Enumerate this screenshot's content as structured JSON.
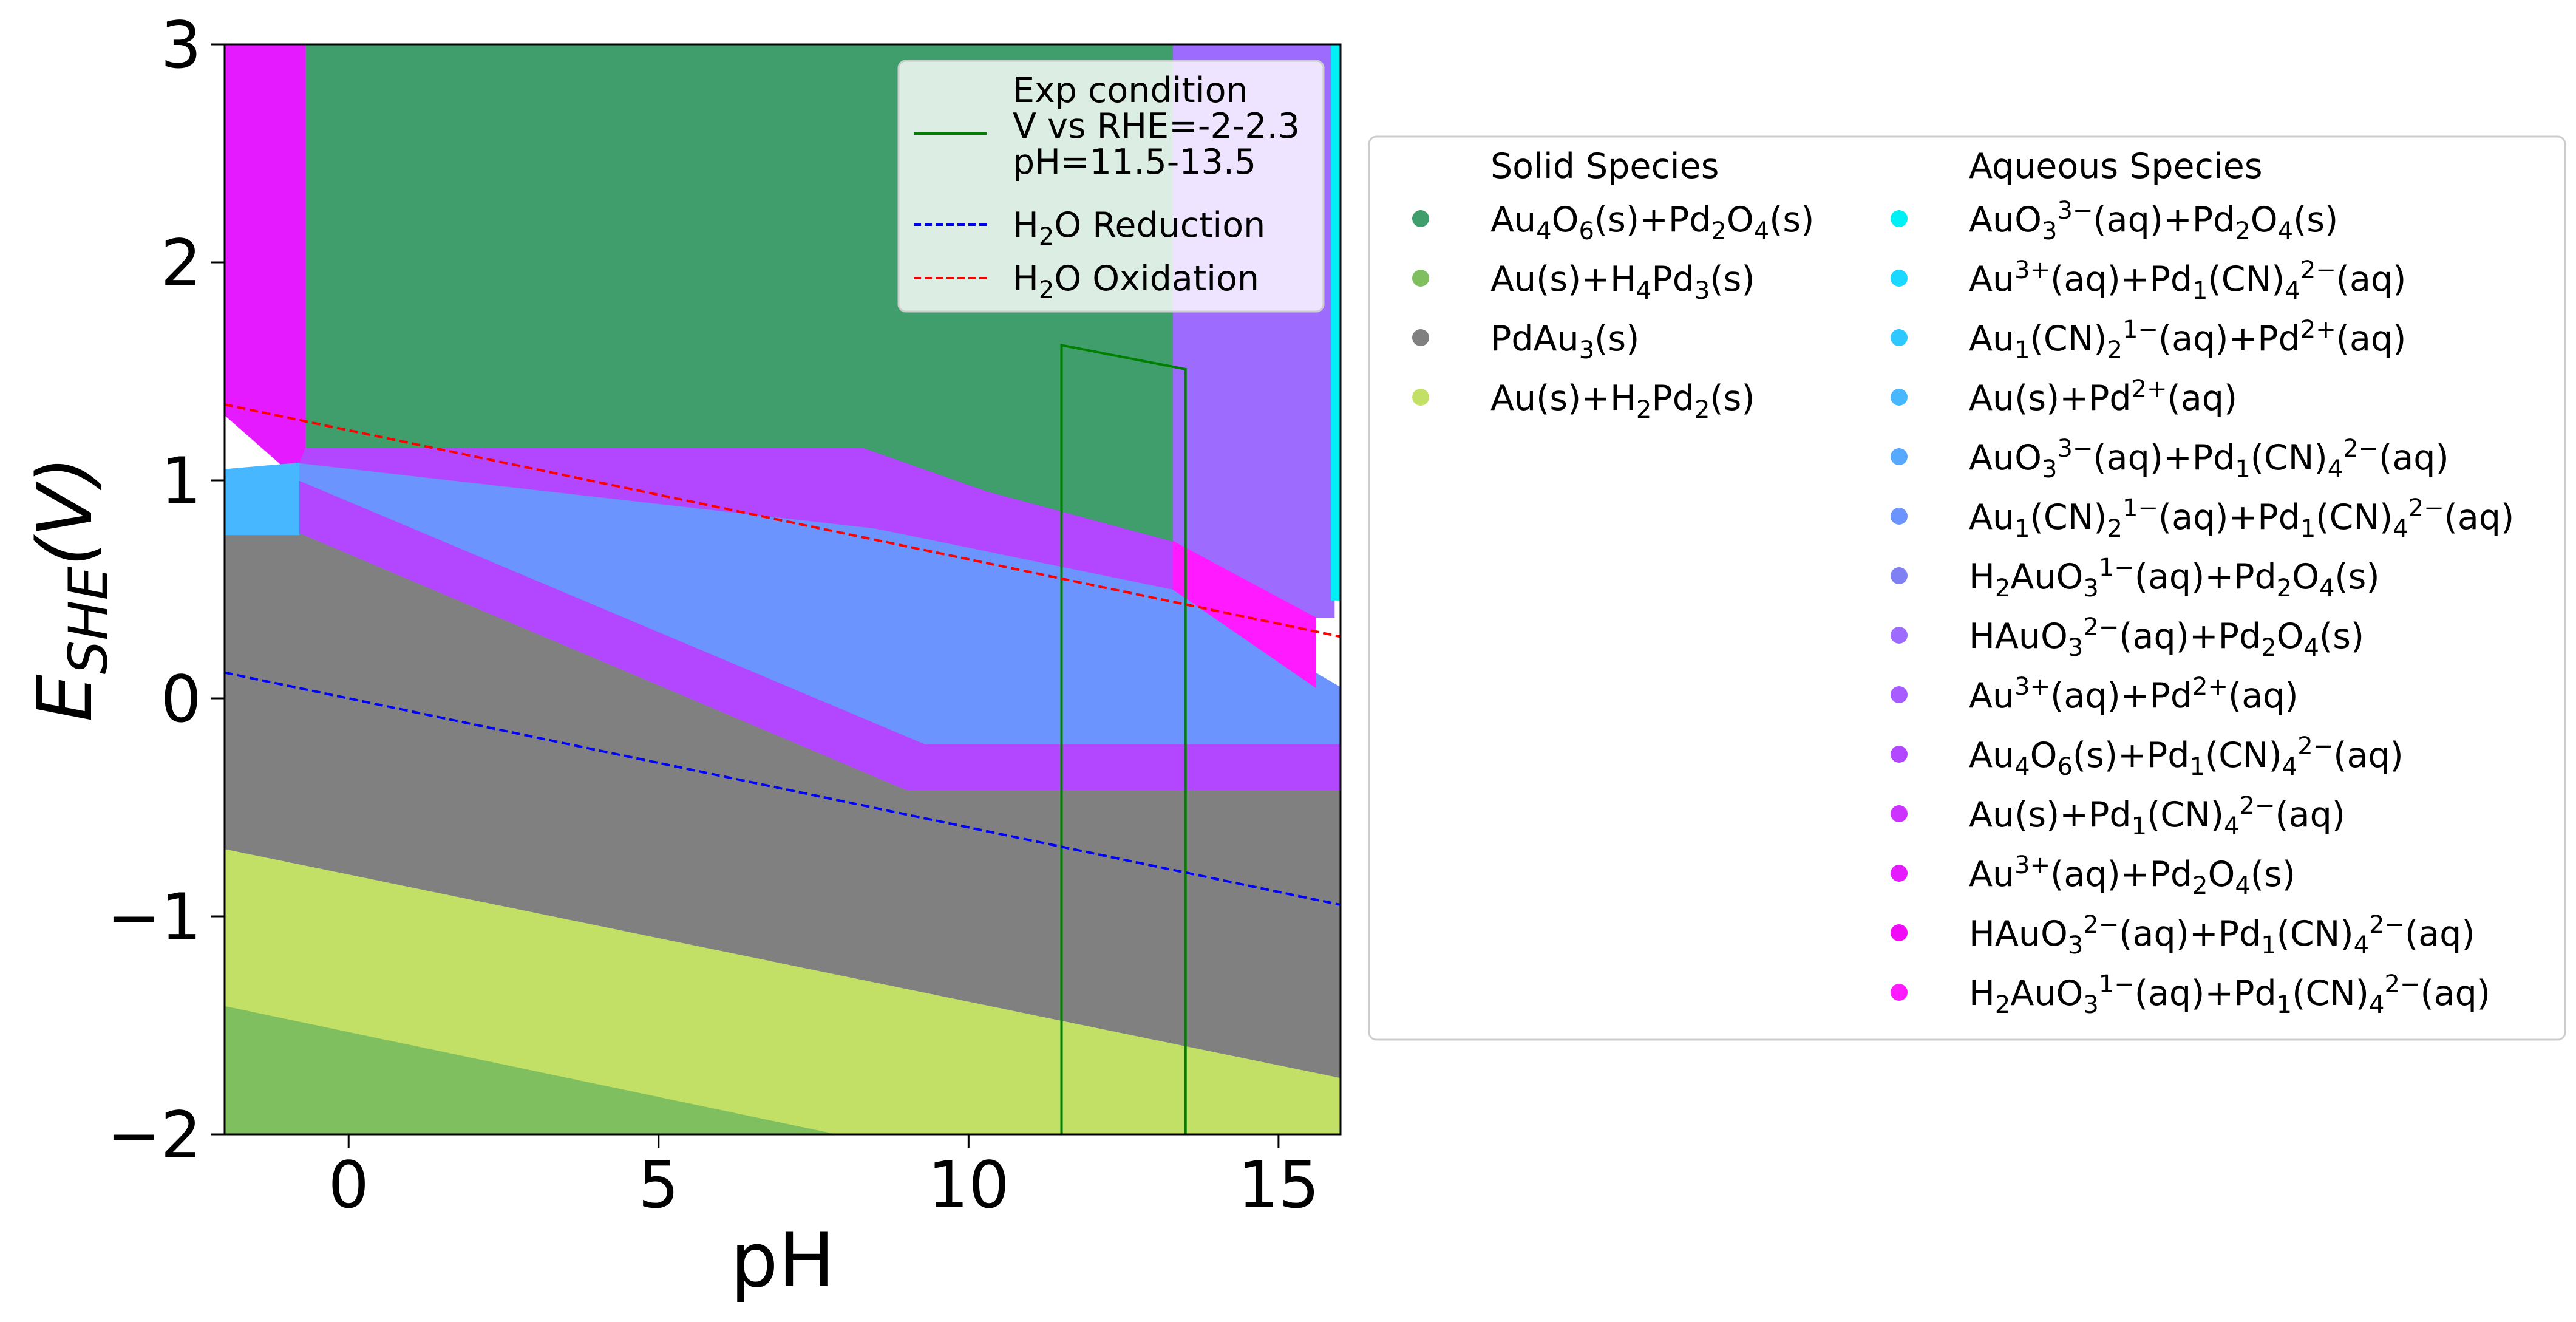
{
  "chart_data": {
    "type": "area",
    "title": "",
    "xlabel": "pH",
    "ylabel": {
      "base": "E",
      "sub": "SHE",
      "suffix": "(V)"
    },
    "xlim": [
      -2,
      16
    ],
    "ylim": [
      -2,
      3
    ],
    "xticks": [
      {
        "value": 0,
        "label": "0"
      },
      {
        "value": 5,
        "label": "5"
      },
      {
        "value": 10,
        "label": "10"
      },
      {
        "value": 15,
        "label": "15"
      }
    ],
    "yticks": [
      {
        "value": -2,
        "label": "−2"
      },
      {
        "value": -1,
        "label": "−1"
      },
      {
        "value": 0,
        "label": "0"
      },
      {
        "value": 1,
        "label": "1"
      },
      {
        "value": 2,
        "label": "2"
      },
      {
        "value": 3,
        "label": "3"
      }
    ],
    "grid": false,
    "regions": [
      {
        "name": "Au(s)+H4Pd3(s)",
        "color": "#7fbf5f",
        "points": [
          [
            -2,
            -2
          ],
          [
            7.9,
            -2
          ],
          [
            -2,
            -1.41
          ]
        ]
      },
      {
        "name": "Au(s)+H2Pd2(s)",
        "color": "#c3e066",
        "points": [
          [
            -2,
            -0.69
          ],
          [
            16,
            -1.74
          ],
          [
            16,
            -2
          ],
          [
            7.9,
            -2
          ],
          [
            -2,
            -1.41
          ]
        ]
      },
      {
        "name": "PdAu3(s)",
        "color": "#808080",
        "points": [
          [
            -2,
            0.75
          ],
          [
            -0.8,
            0.75
          ],
          [
            -0.8,
            0.76
          ],
          [
            9.0,
            -0.42
          ],
          [
            16,
            -0.42
          ],
          [
            16,
            -1.74
          ],
          [
            -2,
            -0.69
          ]
        ]
      },
      {
        "name": "Au(s)+Pd1(CN)4 2-(aq)",
        "color": "#b347ff",
        "points": [
          [
            -0.8,
            1.0
          ],
          [
            -0.8,
            0.76
          ],
          [
            9.0,
            -0.42
          ],
          [
            16,
            -0.42
          ],
          [
            16,
            -0.21
          ],
          [
            9.3,
            -0.21
          ]
        ]
      },
      {
        "name": "Au1(CN)2 1-(aq)+Pd1(CN)4 2-(aq)",
        "color": "#6b94ff",
        "points": [
          [
            -0.8,
            1.08
          ],
          [
            8.5,
            0.78
          ],
          [
            13.3,
            0.5
          ],
          [
            16,
            0.05
          ],
          [
            16,
            -0.21
          ],
          [
            9.3,
            -0.21
          ],
          [
            -0.8,
            1.0
          ]
        ]
      },
      {
        "name": "Au4O6(s)+Pd1(CN)4 2-(aq)",
        "color": "#b347ff",
        "points": [
          [
            -0.7,
            1.15
          ],
          [
            8.3,
            1.15
          ],
          [
            10.3,
            0.95
          ],
          [
            13.3,
            0.72
          ],
          [
            15.6,
            0.37
          ],
          [
            15.6,
            0.05
          ],
          [
            13.3,
            0.5
          ],
          [
            8.5,
            0.78
          ],
          [
            -0.8,
            1.08
          ]
        ]
      },
      {
        "name": "Au4O6(s)+Pd2O4(s)",
        "color": "#3f9e6b",
        "points": [
          [
            -0.7,
            3
          ],
          [
            13.3,
            3
          ],
          [
            13.3,
            0.72
          ],
          [
            10.3,
            0.95
          ],
          [
            8.3,
            1.15
          ],
          [
            -0.7,
            1.15
          ]
        ]
      },
      {
        "name": "HAuO3 2-(aq)+Pd2O4(s)",
        "color": "#9e6bff",
        "points": [
          [
            13.3,
            3
          ],
          [
            15.9,
            3
          ],
          [
            15.9,
            0.37
          ],
          [
            15.6,
            0.37
          ],
          [
            13.3,
            0.72
          ]
        ]
      },
      {
        "name": "H2AuO3 1-(aq)+Pd1(CN)4 2-(aq)",
        "color": "#ff1aff",
        "points": [
          [
            13.3,
            0.72
          ],
          [
            15.6,
            0.37
          ],
          [
            15.6,
            0.05
          ],
          [
            13.3,
            0.5
          ]
        ]
      },
      {
        "name": "Au3+(aq)+Pd2O4(s)",
        "color": "#e61aff",
        "points": [
          [
            -2,
            3
          ],
          [
            -0.7,
            3
          ],
          [
            -0.7,
            1.15
          ],
          [
            -0.8,
            1.08
          ],
          [
            -0.8,
            1.0
          ],
          [
            -2,
            1.3
          ]
        ]
      },
      {
        "name": "Au(s)+Pd2+(aq)",
        "color": "#47b8ff",
        "points": [
          [
            -2,
            0.75
          ],
          [
            -0.8,
            0.75
          ],
          [
            -0.8,
            1.08
          ],
          [
            -2,
            1.05
          ]
        ]
      },
      {
        "name": "AuO3 3-(aq)+Pd2O4(s)",
        "color": "#00f0f5",
        "points": [
          [
            15.85,
            3
          ],
          [
            16,
            3
          ],
          [
            16,
            0.45
          ],
          [
            15.85,
            0.45
          ]
        ]
      }
    ],
    "series": [
      {
        "name": "Exp condition\nV vs RHE=-2-2.3\npH=11.5-13.5",
        "color": "#007f00",
        "style": "solid",
        "points": [
          [
            11.5,
            -2
          ],
          [
            11.5,
            1.62
          ],
          [
            13.5,
            1.51
          ],
          [
            13.5,
            -2
          ]
        ]
      },
      {
        "name": "H2O Reduction",
        "color": "#0000ff",
        "style": "dashed",
        "points": [
          [
            -2,
            0.118
          ],
          [
            16,
            -0.947
          ]
        ]
      },
      {
        "name": "H2O Oxidation",
        "color": "#ff0000",
        "style": "dashed",
        "points": [
          [
            -2,
            1.348
          ],
          [
            16,
            0.283
          ]
        ]
      }
    ],
    "inset_legend": {
      "placement": "top-right",
      "entries": [
        {
          "lines": [
            "Exp condition",
            "V vs RHE=-2-2.3",
            "pH=11.5-13.5"
          ],
          "color": "#007f00",
          "style": "solid"
        },
        {
          "parts": [
            {
              "t": "H"
            },
            {
              "t": "2",
              "sub": true
            },
            {
              "t": "O Reduction"
            }
          ],
          "color": "#0000ff",
          "style": "dashed"
        },
        {
          "parts": [
            {
              "t": "H"
            },
            {
              "t": "2",
              "sub": true
            },
            {
              "t": "O Oxidation"
            }
          ],
          "color": "#ff0000",
          "style": "dashed"
        }
      ]
    },
    "side_legend": {
      "placement": "right",
      "solid_header": "Solid Species",
      "aqueous_header": "Aqueous Species",
      "solid": [
        {
          "color": "#3f9e6b",
          "parts": [
            {
              "t": "Au"
            },
            {
              "t": "4",
              "sub": true
            },
            {
              "t": "O"
            },
            {
              "t": "6",
              "sub": true
            },
            {
              "t": "(s)+Pd"
            },
            {
              "t": "2",
              "sub": true
            },
            {
              "t": "O"
            },
            {
              "t": "4",
              "sub": true
            },
            {
              "t": "(s)"
            }
          ]
        },
        {
          "color": "#7fbf5f",
          "parts": [
            {
              "t": "Au(s)+H"
            },
            {
              "t": "4",
              "sub": true
            },
            {
              "t": "Pd"
            },
            {
              "t": "3",
              "sub": true
            },
            {
              "t": "(s)"
            }
          ]
        },
        {
          "color": "#808080",
          "parts": [
            {
              "t": "PdAu"
            },
            {
              "t": "3",
              "sub": true
            },
            {
              "t": "(s)"
            }
          ]
        },
        {
          "color": "#c3e066",
          "parts": [
            {
              "t": "Au(s)+H"
            },
            {
              "t": "2",
              "sub": true
            },
            {
              "t": "Pd"
            },
            {
              "t": "2",
              "sub": true
            },
            {
              "t": "(s)"
            }
          ]
        }
      ],
      "aqueous": [
        {
          "color": "#00f0f5",
          "parts": [
            {
              "t": "AuO"
            },
            {
              "t": "3",
              "sub": true
            },
            {
              "t": "3−",
              "sup": true
            },
            {
              "t": "(aq)+Pd"
            },
            {
              "t": "2",
              "sub": true
            },
            {
              "t": "O"
            },
            {
              "t": "4",
              "sub": true
            },
            {
              "t": "(s)"
            }
          ]
        },
        {
          "color": "#1ad8ff",
          "parts": [
            {
              "t": "Au"
            },
            {
              "t": "3+",
              "sup": true
            },
            {
              "t": "(aq)+Pd"
            },
            {
              "t": "1",
              "sub": true
            },
            {
              "t": "(CN)"
            },
            {
              "t": "4",
              "sub": true
            },
            {
              "t": "2−",
              "sup": true
            },
            {
              "t": "(aq)"
            }
          ]
        },
        {
          "color": "#2ec8ff",
          "parts": [
            {
              "t": "Au"
            },
            {
              "t": "1",
              "sub": true
            },
            {
              "t": "(CN)"
            },
            {
              "t": "2",
              "sub": true
            },
            {
              "t": "1−",
              "sup": true
            },
            {
              "t": "(aq)+Pd"
            },
            {
              "t": "2+",
              "sup": true
            },
            {
              "t": "(aq)"
            }
          ]
        },
        {
          "color": "#47b8ff",
          "parts": [
            {
              "t": "Au(s)+Pd"
            },
            {
              "t": "2+",
              "sup": true
            },
            {
              "t": "(aq)"
            }
          ]
        },
        {
          "color": "#57a8ff",
          "parts": [
            {
              "t": "AuO"
            },
            {
              "t": "3",
              "sub": true
            },
            {
              "t": "3−",
              "sup": true
            },
            {
              "t": "(aq)+Pd"
            },
            {
              "t": "1",
              "sub": true
            },
            {
              "t": "(CN)"
            },
            {
              "t": "4",
              "sub": true
            },
            {
              "t": "2−",
              "sup": true
            },
            {
              "t": "(aq)"
            }
          ]
        },
        {
          "color": "#6b94ff",
          "parts": [
            {
              "t": "Au"
            },
            {
              "t": "1",
              "sub": true
            },
            {
              "t": "(CN)"
            },
            {
              "t": "2",
              "sub": true
            },
            {
              "t": "1−",
              "sup": true
            },
            {
              "t": "(aq)+Pd"
            },
            {
              "t": "1",
              "sub": true
            },
            {
              "t": "(CN)"
            },
            {
              "t": "4",
              "sub": true
            },
            {
              "t": "2−",
              "sup": true
            },
            {
              "t": "(aq)"
            }
          ]
        },
        {
          "color": "#8080f5",
          "parts": [
            {
              "t": "H"
            },
            {
              "t": "2",
              "sub": true
            },
            {
              "t": "AuO"
            },
            {
              "t": "3",
              "sub": true
            },
            {
              "t": "1−",
              "sup": true
            },
            {
              "t": "(aq)+Pd"
            },
            {
              "t": "2",
              "sub": true
            },
            {
              "t": "O"
            },
            {
              "t": "4",
              "sub": true
            },
            {
              "t": "(s)"
            }
          ]
        },
        {
          "color": "#9e6bff",
          "parts": [
            {
              "t": "HAuO"
            },
            {
              "t": "3",
              "sub": true
            },
            {
              "t": "2−",
              "sup": true
            },
            {
              "t": "(aq)+Pd"
            },
            {
              "t": "2",
              "sub": true
            },
            {
              "t": "O"
            },
            {
              "t": "4",
              "sub": true
            },
            {
              "t": "(s)"
            }
          ]
        },
        {
          "color": "#a85cff",
          "parts": [
            {
              "t": "Au"
            },
            {
              "t": "3+",
              "sup": true
            },
            {
              "t": "(aq)+Pd"
            },
            {
              "t": "2+",
              "sup": true
            },
            {
              "t": "(aq)"
            }
          ]
        },
        {
          "color": "#b347ff",
          "parts": [
            {
              "t": "Au"
            },
            {
              "t": "4",
              "sub": true
            },
            {
              "t": "O"
            },
            {
              "t": "6",
              "sub": true
            },
            {
              "t": "(s)+Pd"
            },
            {
              "t": "1",
              "sub": true
            },
            {
              "t": "(CN)"
            },
            {
              "t": "4",
              "sub": true
            },
            {
              "t": "2−",
              "sup": true
            },
            {
              "t": "(aq)"
            }
          ]
        },
        {
          "color": "#cc33ff",
          "parts": [
            {
              "t": "Au(s)+Pd"
            },
            {
              "t": "1",
              "sub": true
            },
            {
              "t": "(CN)"
            },
            {
              "t": "4",
              "sub": true
            },
            {
              "t": "2−",
              "sup": true
            },
            {
              "t": "(aq)"
            }
          ]
        },
        {
          "color": "#e61aff",
          "parts": [
            {
              "t": "Au"
            },
            {
              "t": "3+",
              "sup": true
            },
            {
              "t": "(aq)+Pd"
            },
            {
              "t": "2",
              "sub": true
            },
            {
              "t": "O"
            },
            {
              "t": "4",
              "sub": true
            },
            {
              "t": "(s)"
            }
          ]
        },
        {
          "color": "#f00af5",
          "parts": [
            {
              "t": "HAuO"
            },
            {
              "t": "3",
              "sub": true
            },
            {
              "t": "2−",
              "sup": true
            },
            {
              "t": "(aq)+Pd"
            },
            {
              "t": "1",
              "sub": true
            },
            {
              "t": "(CN)"
            },
            {
              "t": "4",
              "sub": true
            },
            {
              "t": "2−",
              "sup": true
            },
            {
              "t": "(aq)"
            }
          ]
        },
        {
          "color": "#ff1aff",
          "parts": [
            {
              "t": "H"
            },
            {
              "t": "2",
              "sub": true
            },
            {
              "t": "AuO"
            },
            {
              "t": "3",
              "sub": true
            },
            {
              "t": "1−",
              "sup": true
            },
            {
              "t": "(aq)+Pd"
            },
            {
              "t": "1",
              "sub": true
            },
            {
              "t": "(CN)"
            },
            {
              "t": "4",
              "sub": true
            },
            {
              "t": "2−",
              "sup": true
            },
            {
              "t": "(aq)"
            }
          ]
        }
      ]
    }
  }
}
